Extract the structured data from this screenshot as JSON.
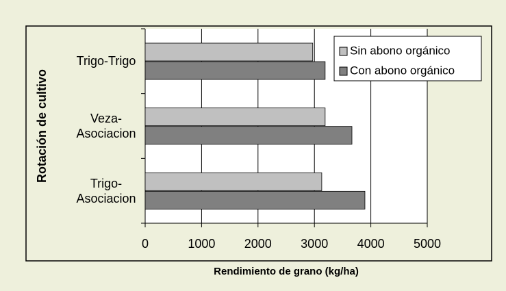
{
  "chart_data": {
    "type": "barh",
    "xlabel": "Rendimiento de grano (kg/ha)",
    "ylabel": "Rotación de cultivo",
    "categories": [
      "Trigo-Trigo",
      "Veza-Asociacion",
      "Trigo-Asociacion"
    ],
    "series": [
      {
        "name": "Sin abono orgánico",
        "color": "#c0c0c0",
        "values": [
          2970,
          3190,
          3130
        ]
      },
      {
        "name": "Con abono orgánico",
        "color": "#808080",
        "values": [
          3190,
          3665,
          3895
        ]
      }
    ],
    "xlim": [
      0,
      5000
    ],
    "xticks": [
      0,
      1000,
      2000,
      3000,
      4000,
      5000
    ],
    "grid": true,
    "legend": "upper right"
  }
}
